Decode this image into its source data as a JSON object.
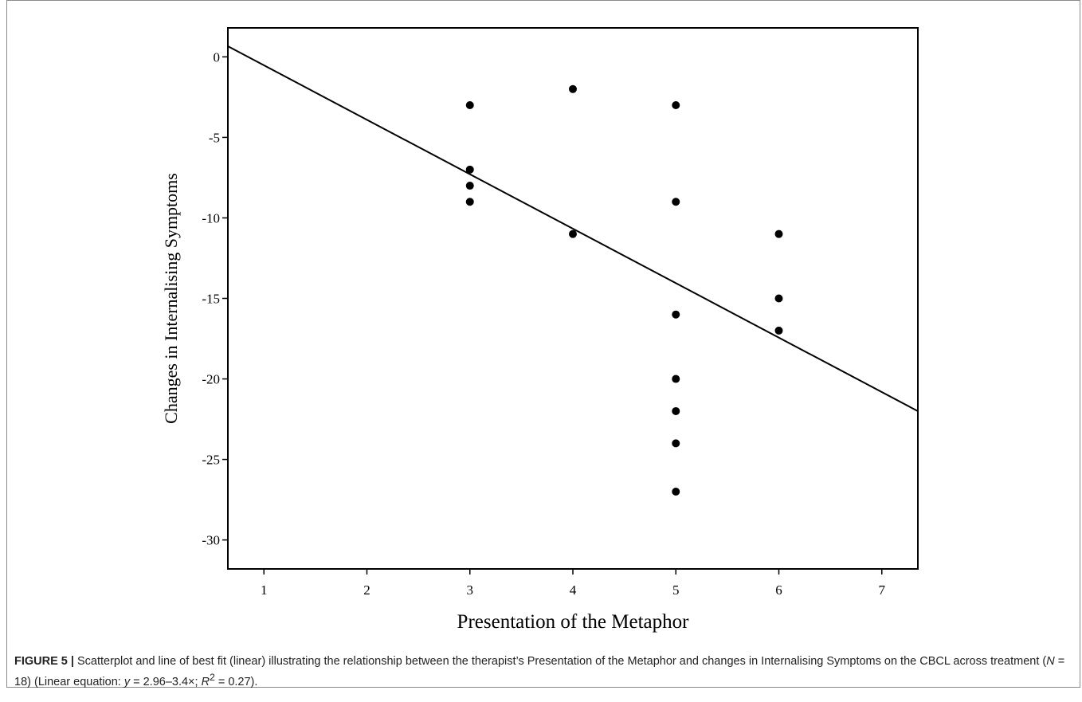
{
  "chart_data": {
    "type": "scatter",
    "xlabel": "Presentation of the Metaphor",
    "ylabel": "Changes in Internalising Symptoms",
    "xlim": [
      0.65,
      7.35
    ],
    "ylim": [
      -31.8,
      1.8
    ],
    "xticks": [
      1,
      2,
      3,
      4,
      5,
      6,
      7
    ],
    "yticks": [
      0,
      -5,
      -10,
      -15,
      -20,
      -25,
      -30
    ],
    "grid": false,
    "legend": "none",
    "points": [
      {
        "x": 3,
        "y": -3
      },
      {
        "x": 3,
        "y": -7
      },
      {
        "x": 3,
        "y": -8
      },
      {
        "x": 3,
        "y": -9
      },
      {
        "x": 4,
        "y": -2
      },
      {
        "x": 4,
        "y": -11
      },
      {
        "x": 5,
        "y": -3
      },
      {
        "x": 5,
        "y": -9
      },
      {
        "x": 5,
        "y": -16
      },
      {
        "x": 5,
        "y": -20
      },
      {
        "x": 5,
        "y": -22
      },
      {
        "x": 5,
        "y": -24
      },
      {
        "x": 5,
        "y": -27
      },
      {
        "x": 6,
        "y": -11
      },
      {
        "x": 6,
        "y": -15
      },
      {
        "x": 6,
        "y": -17
      }
    ],
    "fit_line": {
      "x": [
        0.65,
        7.35
      ],
      "y": [
        0.66,
        -22.0
      ]
    }
  },
  "caption": {
    "label": "FIGURE 5 |",
    "text_1": " Scatterplot and line of best fit (linear) illustrating the relationship between the therapist’s Presentation of the Metaphor and changes in Internalising Symptoms on the CBCL across treatment (",
    "n_var": "N",
    "text_2": " = 18) (Linear equation: ",
    "y_var": "y",
    "text_3": " = 2.96–3.4×; ",
    "r_var": "R",
    "r_sup": "2",
    "text_4": " = 0.27)."
  }
}
